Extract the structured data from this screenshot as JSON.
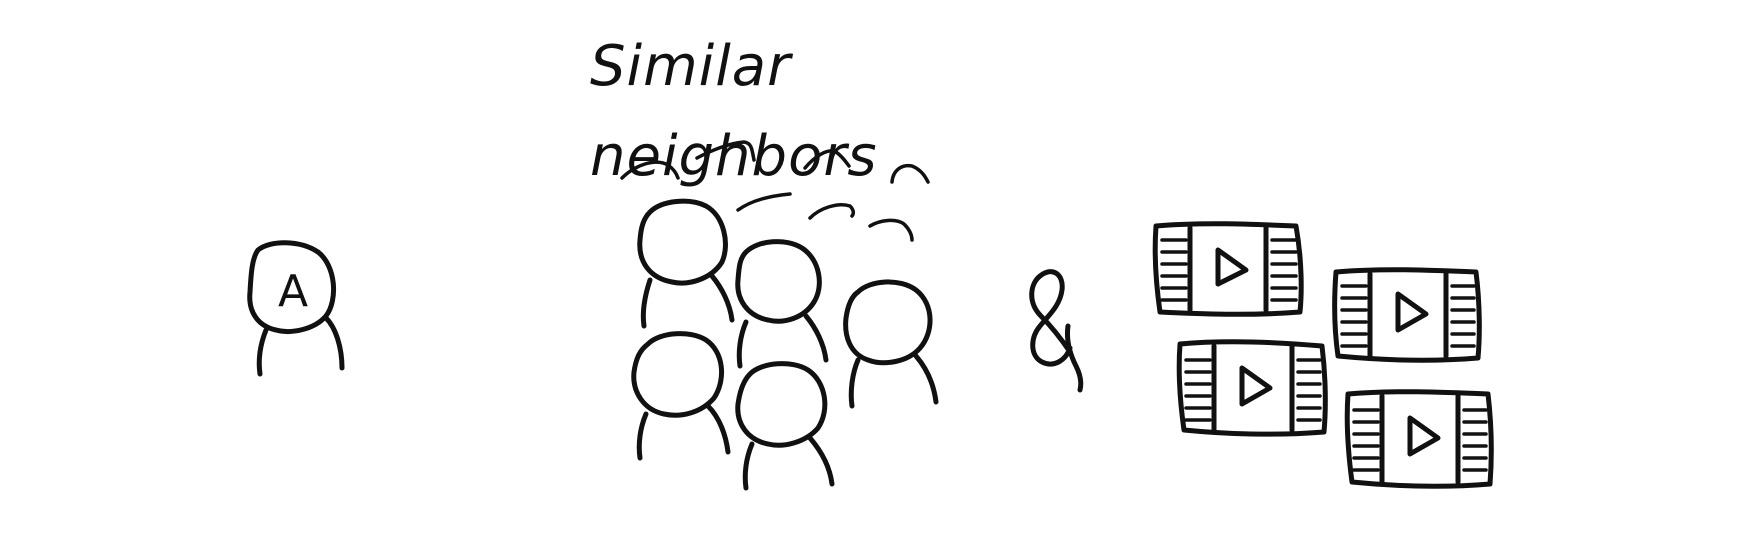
{
  "diagram": {
    "title": "Similar neighbors",
    "user_label": "A",
    "connector": "&",
    "ink_color": "#111111",
    "background": "#ffffff"
  }
}
